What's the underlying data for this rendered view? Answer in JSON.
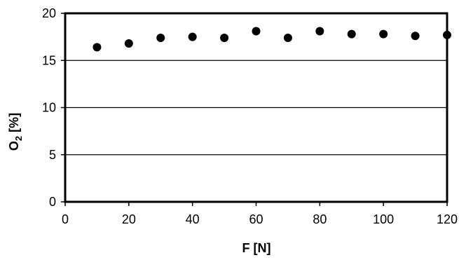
{
  "chart_data": {
    "type": "scatter",
    "title": "",
    "xlabel": "F [N]",
    "ylabel": {
      "main": "O",
      "sub": "2",
      "unit": " [%]"
    },
    "xlim": [
      0,
      120
    ],
    "ylim": [
      0,
      20
    ],
    "xticks": [
      0,
      20,
      40,
      60,
      80,
      100,
      120
    ],
    "yticks": [
      0,
      5,
      10,
      15,
      20
    ],
    "grid": {
      "y_major": true,
      "x_major": false
    },
    "legend": "none",
    "colors": {
      "marker": "#000000",
      "grid": "#000000",
      "frame": "#000000"
    },
    "series": [
      {
        "x": [
          10,
          20,
          30,
          40,
          50,
          60,
          70,
          80,
          90,
          100,
          110,
          120
        ],
        "y": [
          16.4,
          16.8,
          17.4,
          17.5,
          17.4,
          18.1,
          17.4,
          18.1,
          17.8,
          17.8,
          17.6,
          17.7
        ]
      }
    ]
  }
}
